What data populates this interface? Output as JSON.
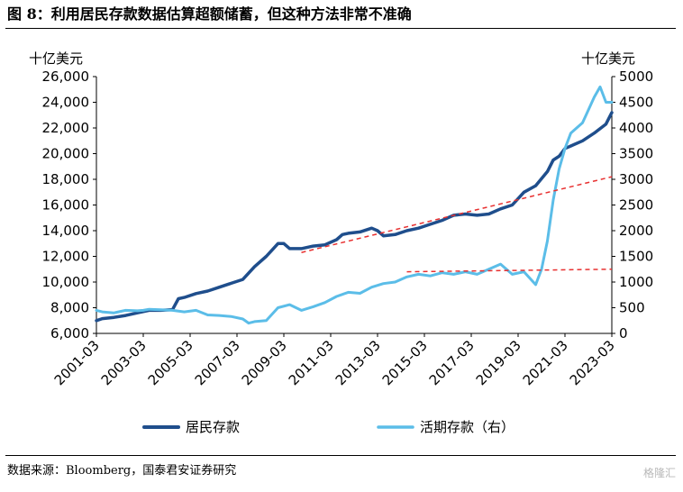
{
  "figure": {
    "title": "图 8：利用居民存款数据估算超额储蓄，但这种方法非常不准确",
    "source": "数据来源：Bloomberg，国泰君安证券研究",
    "watermark": "格隆汇"
  },
  "chart_data": {
    "type": "line",
    "left_unit": "十亿美元",
    "right_unit": "十亿美元",
    "y_left": {
      "min": 6000,
      "max": 26000,
      "ticks": [
        6000,
        8000,
        10000,
        12000,
        14000,
        16000,
        18000,
        20000,
        22000,
        24000,
        26000
      ],
      "tick_labels": [
        "6,000",
        "8,000",
        "10,000",
        "12,000",
        "14,000",
        "16,000",
        "18,000",
        "20,000",
        "22,000",
        "24,000",
        "26,000"
      ]
    },
    "y_right": {
      "min": 0,
      "max": 5000,
      "ticks": [
        0,
        500,
        1000,
        1500,
        2000,
        2500,
        3000,
        3500,
        4000,
        4500,
        5000
      ],
      "tick_labels": [
        "0",
        "500",
        "1000",
        "1500",
        "2000",
        "2500",
        "3000",
        "3500",
        "4000",
        "4500",
        "5000"
      ]
    },
    "x_range": [
      2001.25,
      2023.25
    ],
    "x_ticks": [
      2001.25,
      2003.25,
      2005.25,
      2007.25,
      2009.25,
      2011.25,
      2013.25,
      2015.25,
      2017.25,
      2019.25,
      2021.25,
      2023.25
    ],
    "x_tick_labels": [
      "2001-03",
      "2003-03",
      "2005-03",
      "2007-03",
      "2009-03",
      "2011-03",
      "2013-03",
      "2015-03",
      "2017-03",
      "2019-03",
      "2021-03",
      "2023-03"
    ],
    "legend_position": "bottom",
    "series": [
      {
        "name": "居民存款",
        "axis": "left",
        "color": "#1f4e8c",
        "points": [
          [
            2001.25,
            7000
          ],
          [
            2001.5,
            7150
          ],
          [
            2002.0,
            7250
          ],
          [
            2002.5,
            7400
          ],
          [
            2003.0,
            7600
          ],
          [
            2003.25,
            7700
          ],
          [
            2003.5,
            7800
          ],
          [
            2004.0,
            7800
          ],
          [
            2004.5,
            7850
          ],
          [
            2004.75,
            8700
          ],
          [
            2005.0,
            8800
          ],
          [
            2005.5,
            9100
          ],
          [
            2006.0,
            9300
          ],
          [
            2006.5,
            9600
          ],
          [
            2007.0,
            9900
          ],
          [
            2007.5,
            10200
          ],
          [
            2008.0,
            11200
          ],
          [
            2008.5,
            12000
          ],
          [
            2008.75,
            12500
          ],
          [
            2009.0,
            13000
          ],
          [
            2009.25,
            13000
          ],
          [
            2009.5,
            12600
          ],
          [
            2010.0,
            12600
          ],
          [
            2010.5,
            12800
          ],
          [
            2011.0,
            12900
          ],
          [
            2011.5,
            13300
          ],
          [
            2011.75,
            13700
          ],
          [
            2012.0,
            13800
          ],
          [
            2012.5,
            13900
          ],
          [
            2013.0,
            14200
          ],
          [
            2013.25,
            14000
          ],
          [
            2013.5,
            13600
          ],
          [
            2014.0,
            13700
          ],
          [
            2014.5,
            14000
          ],
          [
            2015.0,
            14200
          ],
          [
            2015.5,
            14500
          ],
          [
            2016.0,
            14800
          ],
          [
            2016.5,
            15200
          ],
          [
            2017.0,
            15300
          ],
          [
            2017.5,
            15200
          ],
          [
            2018.0,
            15300
          ],
          [
            2018.5,
            15700
          ],
          [
            2019.0,
            16000
          ],
          [
            2019.5,
            17000
          ],
          [
            2020.0,
            17500
          ],
          [
            2020.5,
            18600
          ],
          [
            2020.75,
            19500
          ],
          [
            2021.0,
            19800
          ],
          [
            2021.25,
            20400
          ],
          [
            2021.5,
            20600
          ],
          [
            2022.0,
            21000
          ],
          [
            2022.5,
            21600
          ],
          [
            2023.0,
            22300
          ],
          [
            2023.25,
            23200
          ]
        ]
      },
      {
        "name": "活期存款（右）",
        "axis": "right",
        "color": "#5bbde8",
        "points": [
          [
            2001.25,
            450
          ],
          [
            2001.5,
            420
          ],
          [
            2002.0,
            400
          ],
          [
            2002.5,
            450
          ],
          [
            2003.0,
            440
          ],
          [
            2003.25,
            450
          ],
          [
            2003.5,
            470
          ],
          [
            2004.0,
            460
          ],
          [
            2004.5,
            450
          ],
          [
            2005.0,
            420
          ],
          [
            2005.5,
            450
          ],
          [
            2006.0,
            360
          ],
          [
            2006.5,
            350
          ],
          [
            2007.0,
            330
          ],
          [
            2007.5,
            280
          ],
          [
            2007.75,
            200
          ],
          [
            2008.0,
            230
          ],
          [
            2008.5,
            250
          ],
          [
            2009.0,
            500
          ],
          [
            2009.5,
            560
          ],
          [
            2010.0,
            450
          ],
          [
            2010.5,
            520
          ],
          [
            2011.0,
            600
          ],
          [
            2011.5,
            720
          ],
          [
            2012.0,
            800
          ],
          [
            2012.5,
            780
          ],
          [
            2013.0,
            900
          ],
          [
            2013.5,
            970
          ],
          [
            2014.0,
            1000
          ],
          [
            2014.5,
            1100
          ],
          [
            2015.0,
            1150
          ],
          [
            2015.5,
            1120
          ],
          [
            2016.0,
            1180
          ],
          [
            2016.5,
            1150
          ],
          [
            2017.0,
            1200
          ],
          [
            2017.5,
            1150
          ],
          [
            2018.0,
            1250
          ],
          [
            2018.5,
            1350
          ],
          [
            2019.0,
            1150
          ],
          [
            2019.5,
            1200
          ],
          [
            2020.0,
            950
          ],
          [
            2020.25,
            1250
          ],
          [
            2020.5,
            1800
          ],
          [
            2020.75,
            2600
          ],
          [
            2021.0,
            3200
          ],
          [
            2021.25,
            3600
          ],
          [
            2021.5,
            3900
          ],
          [
            2022.0,
            4100
          ],
          [
            2022.5,
            4600
          ],
          [
            2022.75,
            4800
          ],
          [
            2023.0,
            4500
          ],
          [
            2023.25,
            4500
          ]
        ]
      }
    ],
    "trend_lines": [
      {
        "axis": "left",
        "color": "#e83030",
        "points": [
          [
            2010.0,
            12300
          ],
          [
            2023.25,
            18200
          ]
        ]
      },
      {
        "axis": "right",
        "color": "#e83030",
        "points": [
          [
            2014.5,
            1200
          ],
          [
            2023.25,
            1250
          ]
        ]
      }
    ]
  }
}
